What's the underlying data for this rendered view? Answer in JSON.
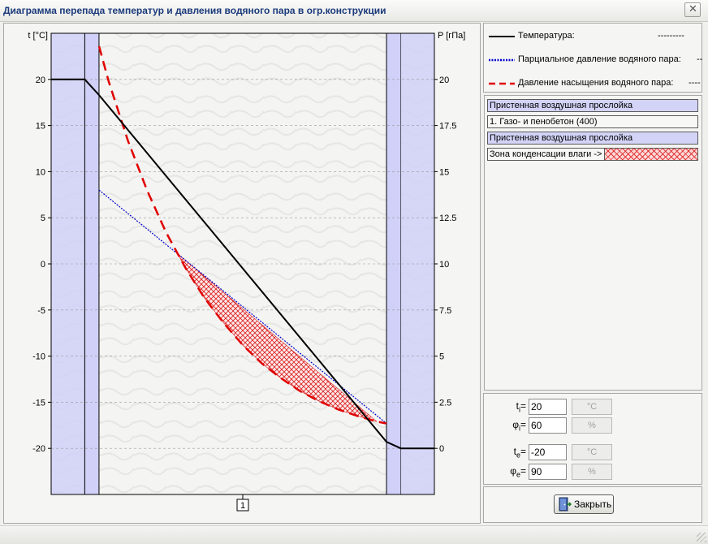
{
  "window": {
    "title": "Диаграмма перепада температур и давления водяного пара в огр.конструкции",
    "close_glyph": "✕"
  },
  "legend": [
    {
      "label": "Температура:",
      "value": "---------",
      "color": "#000000",
      "style": "solid"
    },
    {
      "label": "Парциальное давление водяного пара:",
      "value": "--",
      "color": "#0000cc",
      "style": "dotted"
    },
    {
      "label": "Давление насыщения водяного пара:",
      "value": "----",
      "color": "#e00000",
      "style": "dashed"
    }
  ],
  "layers": [
    {
      "name": "Пристенная воздушная прослойка",
      "kind": "air"
    },
    {
      "name": "1. Газо- и пенобетон (400)",
      "kind": "material"
    },
    {
      "name": "Пристенная воздушная прослойка",
      "kind": "air"
    },
    {
      "name": "Зона конденсации влаги ->",
      "kind": "condensation"
    }
  ],
  "params": [
    {
      "label_main": "t",
      "label_sub": "i",
      "label_suffix": "=",
      "value": "20",
      "unit": "°C"
    },
    {
      "label_main": "φ",
      "label_sub": "i",
      "label_suffix": "=",
      "value": "60",
      "unit": "%"
    },
    {
      "label_main": "t",
      "label_sub": "e",
      "label_suffix": "=",
      "value": "-20",
      "unit": "°C"
    },
    {
      "label_main": "φ",
      "label_sub": "e",
      "label_suffix": "=",
      "value": "90",
      "unit": "%"
    }
  ],
  "close_button": {
    "label": "Закрыть",
    "icon": "close-door-icon"
  },
  "chart_data": {
    "type": "line",
    "ylabel_left": "t [°C]",
    "ylabel_right": "P [гПа]",
    "ylim_left": [
      -25,
      25
    ],
    "ylim_right": [
      -2.5,
      22.5
    ],
    "left_ticks": [
      "20",
      "15",
      "10",
      "5",
      "0",
      "-5",
      "-10",
      "-15",
      "-20"
    ],
    "right_ticks": [
      "20",
      "17.5",
      "15",
      "12.5",
      "10",
      "7.5",
      "5",
      "2.5",
      "0"
    ],
    "x_markers": [
      "1"
    ],
    "grid": true,
    "colors": {
      "air_layer": "#d0d0f8",
      "temperature": "#000000",
      "partial": "#0000cc",
      "saturation": "#e00000",
      "condensation": "#d81e1e"
    },
    "series": [
      {
        "name": "Температура",
        "y_axis": "left",
        "x": [
          0,
          0.0877,
          0.1249,
          0.8751,
          0.9123,
          1
        ],
        "values": [
          20,
          20,
          18.3,
          -19.3,
          -20,
          -20
        ]
      },
      {
        "name": "Парциальное давление водяного пара",
        "y_axis": "right",
        "x": [
          0.1249,
          0.8751
        ],
        "values": [
          14.0,
          1.35
        ]
      },
      {
        "name": "Давление насыщения водяного пара",
        "y_axis": "right",
        "x": [
          0.1249,
          0.15,
          0.2,
          0.25,
          0.3,
          0.35,
          0.4,
          0.45,
          0.5,
          0.55,
          0.6,
          0.65,
          0.7,
          0.75,
          0.8,
          0.85,
          0.8751
        ],
        "values": [
          21.8,
          19.9,
          16.7,
          14.0,
          11.7,
          9.8,
          8.15,
          6.8,
          5.6,
          4.6,
          3.8,
          3.1,
          2.55,
          2.1,
          1.75,
          1.45,
          1.35
        ]
      }
    ]
  }
}
